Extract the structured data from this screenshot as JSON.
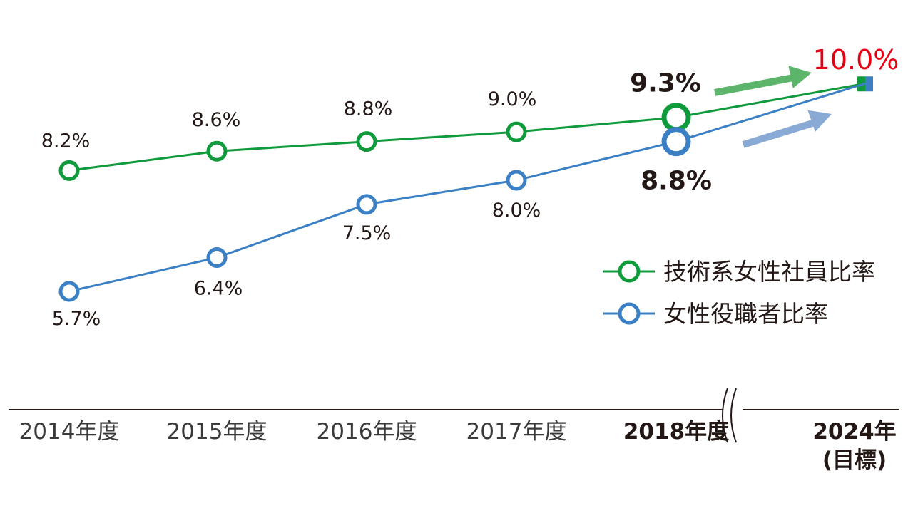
{
  "chart_data": {
    "type": "line",
    "categories": [
      "2014年度",
      "2015年度",
      "2016年度",
      "2017年度",
      "2018年度",
      "2024年"
    ],
    "category_subtitles": [
      "",
      "",
      "",
      "",
      "",
      "(目標)"
    ],
    "bold_categories": [
      "2018年度",
      "2024年"
    ],
    "series": [
      {
        "name": "技術系女性社員比率",
        "color": "#0f9a3c",
        "values": [
          8.2,
          8.6,
          8.8,
          9.0,
          9.3,
          10.0
        ],
        "value_labels": [
          "8.2%",
          "8.6%",
          "8.8%",
          "9.0%",
          "9.3%",
          ""
        ]
      },
      {
        "name": "女性役職者比率",
        "color": "#3b7fc4",
        "values": [
          5.7,
          6.4,
          7.5,
          8.0,
          8.8,
          10.0
        ],
        "value_labels": [
          "5.7%",
          "6.4%",
          "7.5%",
          "8.0%",
          "8.8%",
          ""
        ]
      }
    ],
    "target_label": "10.0%",
    "target_color": "#e60012",
    "axis_break_between": [
      "2018年度",
      "2024年"
    ],
    "arrow_colors": [
      "#5cb56b",
      "#8aaad6"
    ],
    "legend_position": "right",
    "grid": false
  }
}
